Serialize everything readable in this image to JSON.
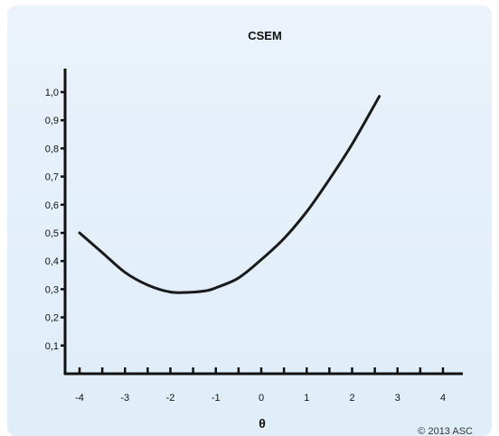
{
  "chart_data": {
    "type": "line",
    "title": "CSEM",
    "xlabel": "θ",
    "ylabel": "",
    "xlim": [
      -4.3,
      4.3
    ],
    "ylim": [
      0,
      1.07
    ],
    "xticks": [
      -4,
      -3,
      -2,
      -1,
      0,
      1,
      2,
      3,
      4
    ],
    "xtick_labels": [
      "-4",
      "-3",
      "-2",
      "-1",
      "0",
      "1",
      "2",
      "3",
      "4"
    ],
    "yticks": [
      0.1,
      0.2,
      0.3,
      0.4,
      0.5,
      0.6,
      0.7,
      0.8,
      0.9,
      1.0
    ],
    "ytick_labels": [
      "0,1",
      "0,2",
      "0,3",
      "0,4",
      "0,5",
      "0,6",
      "0,7",
      "0,8",
      "0,9",
      "1,0"
    ],
    "grid": false,
    "series": [
      {
        "x": [
          -4.0,
          -3.5,
          -3.0,
          -2.5,
          -2.0,
          -1.6,
          -1.2,
          -1.0,
          -0.5,
          0.0,
          0.5,
          1.0,
          1.5,
          2.0,
          2.6
        ],
        "y": [
          0.5,
          0.43,
          0.36,
          0.315,
          0.29,
          0.289,
          0.295,
          0.305,
          0.34,
          0.405,
          0.48,
          0.575,
          0.69,
          0.815,
          0.985
        ]
      }
    ],
    "colors": {
      "line": "#1a1a1a",
      "axis": "#111111"
    }
  },
  "copyright": "© 2013 ASC"
}
